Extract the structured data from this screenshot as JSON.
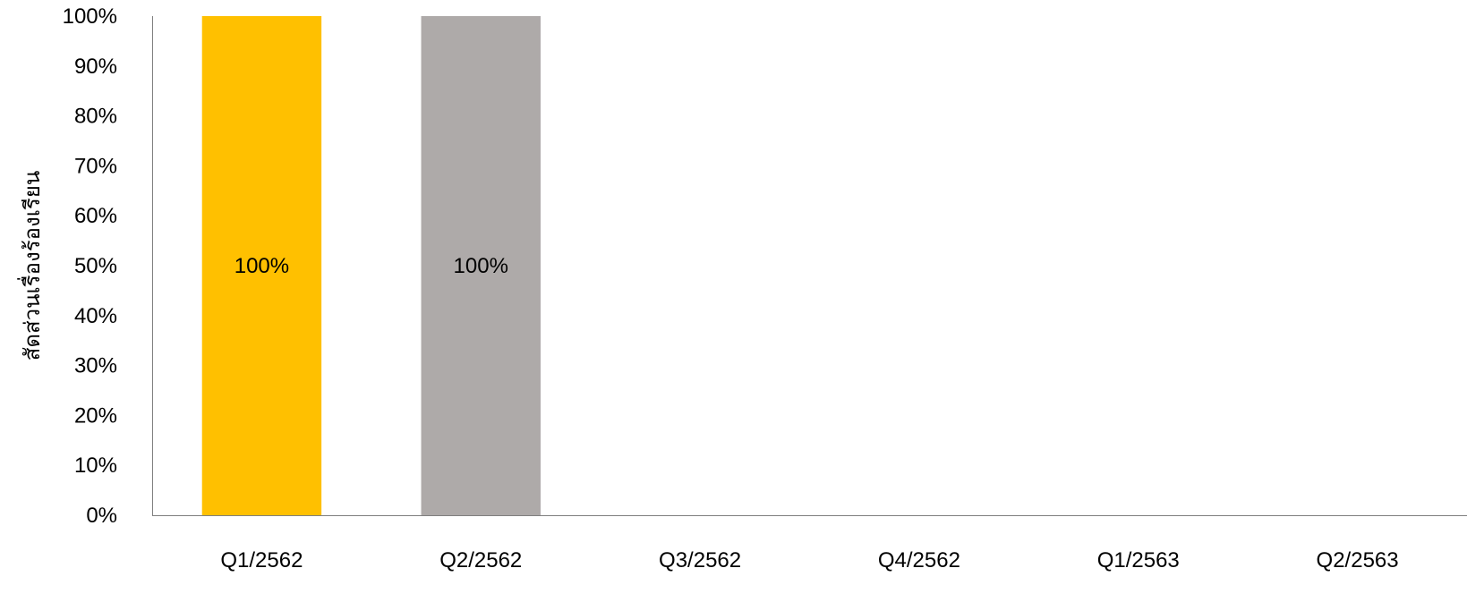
{
  "chart_data": {
    "type": "bar",
    "ylabel": "สัดส่วนเรื่องร้องเรียน",
    "xlabel": "",
    "categories": [
      "Q1/2562",
      "Q2/2562",
      "Q3/2562",
      "Q4/2562",
      "Q1/2563",
      "Q2/2563"
    ],
    "values": [
      100,
      100,
      null,
      null,
      null,
      null
    ],
    "bar_colors": [
      "#FFC000",
      "#AEAAA9",
      "#AEAAA9",
      "#AEAAA9",
      "#AEAAA9",
      "#AEAAA9"
    ],
    "data_labels": [
      "100%",
      "100%",
      "",
      "",
      "",
      ""
    ],
    "ylim": [
      0,
      100
    ],
    "yticks": [
      "0%",
      "10%",
      "20%",
      "30%",
      "40%",
      "50%",
      "60%",
      "70%",
      "80%",
      "90%",
      "100%"
    ],
    "grid": false,
    "legend": "none"
  }
}
